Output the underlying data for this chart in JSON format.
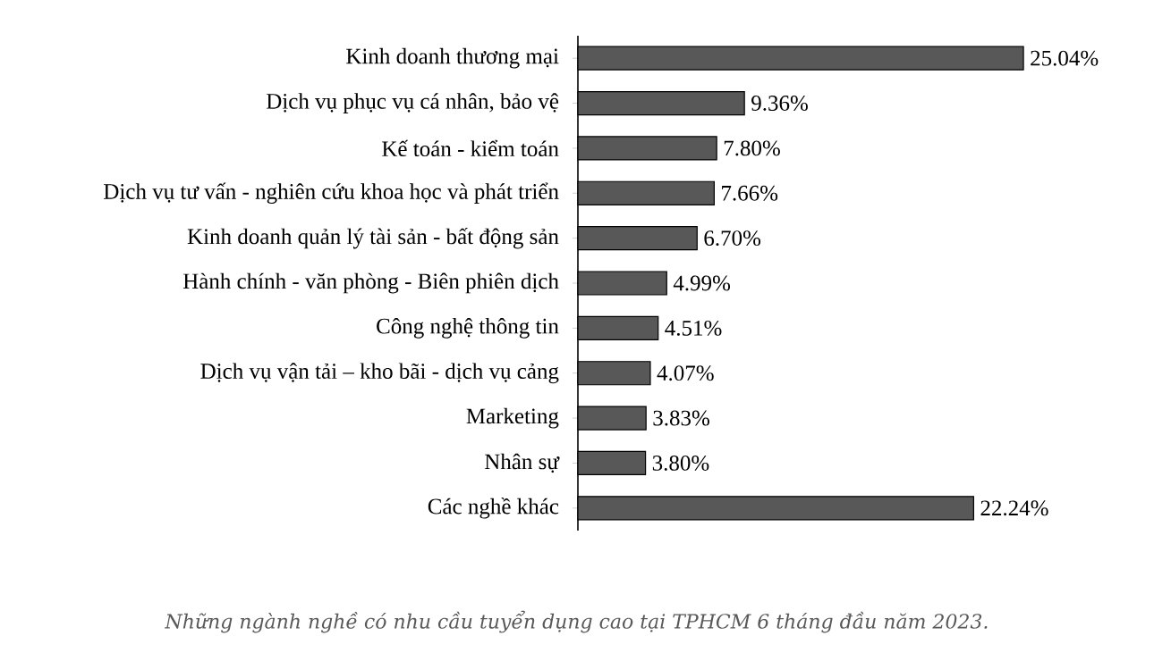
{
  "chart_data": {
    "type": "bar",
    "orientation": "horizontal",
    "categories": [
      "Kinh doanh thương mại",
      "Dịch vụ phục vụ cá nhân, bảo vệ",
      "Kế toán - kiểm toán",
      "Dịch vụ tư vấn - nghiên cứu khoa học và phát triển",
      "Kinh doanh quản lý tài sản - bất động sản",
      "Hành chính - văn phòng - Biên phiên dịch",
      "Công nghệ thông tin",
      "Dịch vụ vận tải – kho bãi - dịch vụ cảng",
      "Marketing",
      "Nhân sự",
      "Các nghề khác"
    ],
    "values": [
      25.04,
      9.36,
      7.8,
      7.66,
      6.7,
      4.99,
      4.51,
      4.07,
      3.83,
      3.8,
      22.24
    ],
    "value_labels": [
      "25.04%",
      "9.36%",
      "7.80%",
      "7.66%",
      "6.70%",
      "4.99%",
      "4.51%",
      "4.07%",
      "3.83%",
      "3.80%",
      "22.24%"
    ],
    "color": "#585858",
    "annotations": [
      "Những ngành nghề có nhu cầu tuyển dụng cao tại TPHCM 6 tháng đầu năm 2023."
    ]
  }
}
